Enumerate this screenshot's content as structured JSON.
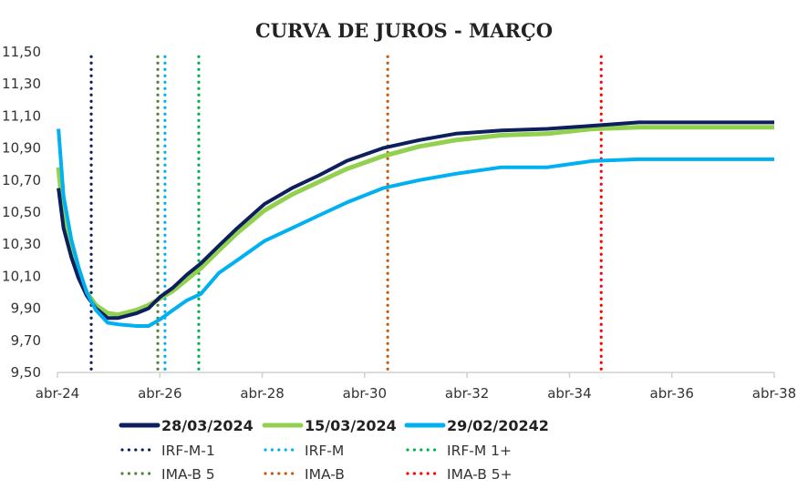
{
  "chart_data": {
    "type": "line",
    "title": "CURVA DE JUROS - MARÇO",
    "xlabel": "",
    "ylabel": "",
    "x_unit": "years since abr-24",
    "xlim": [
      0,
      14
    ],
    "ylim": [
      9.5,
      11.5
    ],
    "x_ticks": [
      {
        "v": 0,
        "label": "abr-24"
      },
      {
        "v": 2,
        "label": "abr-26"
      },
      {
        "v": 4,
        "label": "abr-28"
      },
      {
        "v": 6,
        "label": "abr-30"
      },
      {
        "v": 8,
        "label": "abr-32"
      },
      {
        "v": 10,
        "label": "abr-34"
      },
      {
        "v": 12,
        "label": "abr-36"
      },
      {
        "v": 14,
        "label": "abr-38"
      }
    ],
    "y_ticks": [
      {
        "v": 11.5,
        "label": "11,50"
      },
      {
        "v": 11.3,
        "label": "11,30"
      },
      {
        "v": 11.1,
        "label": "11,10"
      },
      {
        "v": 10.9,
        "label": "10,90"
      },
      {
        "v": 10.7,
        "label": "10,70"
      },
      {
        "v": 10.5,
        "label": "10,50"
      },
      {
        "v": 10.3,
        "label": "10,30"
      },
      {
        "v": 10.1,
        "label": "10,10"
      },
      {
        "v": 9.9,
        "label": "9,90"
      },
      {
        "v": 9.7,
        "label": "9,70"
      },
      {
        "v": 9.5,
        "label": "9,50"
      }
    ],
    "grid": false,
    "legend_position": "bottom",
    "x": [
      0.02,
      0.12,
      0.27,
      0.41,
      0.57,
      0.75,
      0.98,
      1.19,
      1.55,
      1.78,
      2.0,
      2.26,
      2.53,
      2.8,
      3.15,
      3.51,
      4.04,
      4.58,
      5.11,
      5.65,
      6.36,
      7.07,
      7.78,
      8.67,
      9.57,
      10.46,
      11.35,
      14.0
    ],
    "series": [
      {
        "name": "28/03/2024",
        "color": "#0d1f5c",
        "values": [
          10.65,
          10.4,
          10.22,
          10.09,
          9.98,
          9.9,
          9.84,
          9.84,
          9.87,
          9.9,
          9.97,
          10.03,
          10.11,
          10.18,
          10.29,
          10.4,
          10.55,
          10.65,
          10.73,
          10.82,
          10.9,
          10.95,
          10.99,
          11.01,
          11.02,
          11.04,
          11.06,
          11.06
        ]
      },
      {
        "name": "15/03/2024",
        "color": "#92d050",
        "values": [
          10.78,
          10.46,
          10.25,
          10.12,
          10.0,
          9.92,
          9.87,
          9.86,
          9.89,
          9.92,
          9.96,
          10.01,
          10.08,
          10.15,
          10.26,
          10.37,
          10.51,
          10.61,
          10.69,
          10.77,
          10.85,
          10.91,
          10.95,
          10.98,
          10.99,
          11.02,
          11.03,
          11.03
        ]
      },
      {
        "name": "29/02/20242",
        "color": "#00b0f0",
        "values": [
          11.02,
          10.6,
          10.33,
          10.16,
          10.0,
          9.89,
          9.81,
          9.8,
          9.79,
          9.79,
          9.83,
          9.89,
          9.95,
          9.99,
          10.12,
          10.2,
          10.32,
          10.4,
          10.48,
          10.56,
          10.65,
          10.7,
          10.74,
          10.78,
          10.78,
          10.82,
          10.83,
          10.83
        ]
      }
    ],
    "reference_lines": [
      {
        "name": "IRF-M-1",
        "color": "#0d1f5c",
        "x": 0.66
      },
      {
        "name": "IRF-M",
        "color": "#00b0f0",
        "x": 2.1
      },
      {
        "name": "IRF-M 1+",
        "color": "#00b050",
        "x": 2.76
      },
      {
        "name": "IMA-B 5",
        "color": "#548235",
        "x": 1.96
      },
      {
        "name": "IMA-B",
        "color": "#c55a11",
        "x": 6.45
      },
      {
        "name": "IMA-B 5+",
        "color": "#ff0000",
        "x": 10.62
      }
    ]
  }
}
